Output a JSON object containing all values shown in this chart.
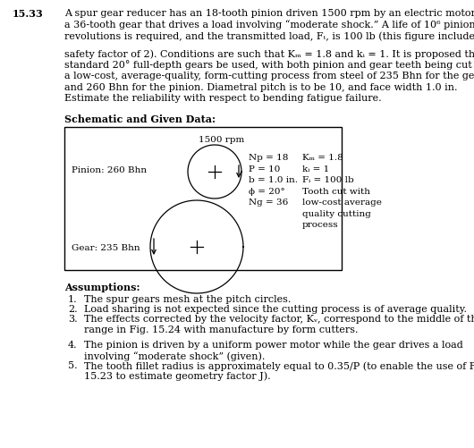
{
  "problem_number": "15.33",
  "main_text_lines": [
    "A spur gear reducer has an 18-tooth pinion driven 1500 rpm by an electric motor and",
    "a 36-tooth gear that drives a load involving “moderate shock.” A life of 10⁶ pinion",
    "revolutions is required, and the transmitted load, Fₜ, is 100 lb (this figure includes a"
  ],
  "cont_text_lines": [
    "safety factor of 2). Conditions are such that Kₘ = 1.8 and kᵢ = 1. It is proposed that",
    "standard 20° full-depth gears be used, with both pinion and gear teeth being cut with",
    "a low-cost, average-quality, form-cutting process from steel of 235 Bhn for the gear",
    "and 260 Bhn for the pinion. Diametral pitch is to be 10, and face width 1.0 in.",
    "Estimate the reliability with respect to bending fatigue failure."
  ],
  "schematic_label": "Schematic and Given Data:",
  "rpm_label": "1500 rpm",
  "pinion_label": "Pinion: 260 Bhn",
  "gear_label": "Gear: 235 Bhn",
  "params_left": [
    "Np = 18",
    "P = 10",
    "b = 1.0 in.",
    "ϕ = 20°",
    "Ng = 36"
  ],
  "params_right_line1": "Kₘ = 1.8",
  "params_right_line2": "kᵢ = 1",
  "params_right_line3": "Fᵢ = 100 lb",
  "params_right_lines_rest": [
    "Tooth cut with",
    "low-cost average",
    "quality cutting",
    "process"
  ],
  "assumptions_title": "Assumptions:",
  "assumption1": "The spur gears mesh at the pitch circles.",
  "assumption2": "Load sharing is not expected since the cutting process is of average quality.",
  "assumption3a": "The effects corrected by the velocity factor, Kᵥ, correspond to the middle of the",
  "assumption3b": "range in Fig. 15.24 with manufacture by form cutters.",
  "assumption4a": "The pinion is driven by a uniform power motor while the gear drives a load",
  "assumption4b": "involving “moderate shock” (given).",
  "assumption5a": "The tooth fillet radius is approximately equal to 0.35/P (to enable the use of Fig.",
  "assumption5b": "15.23 to estimate geometry factor J).",
  "background_color": "#ffffff",
  "text_color": "#000000"
}
